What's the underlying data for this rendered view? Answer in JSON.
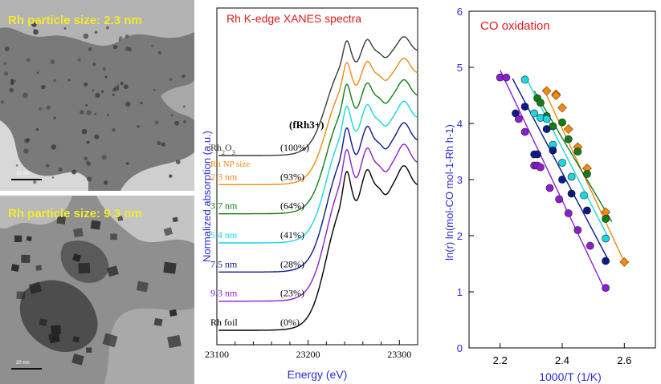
{
  "tem": {
    "top_label": "Rh particle size: 2.3 nm",
    "bottom_label": "Rh particle size: 9.3 nm",
    "top_scale": "10 nm",
    "bottom_scale": "20 nm"
  },
  "chart_data": [
    {
      "type": "line",
      "title": "Rh K-edge XANES spectra",
      "xlabel": "Energy (eV)",
      "ylabel": "Normalized absorption (a.u.)",
      "xlim": [
        23100,
        23320
      ],
      "xticks": [
        23100,
        23200,
        23300
      ],
      "fraction_header": "(fRh3+)",
      "size_header": "Rh NP size",
      "series": [
        {
          "name": "Rh foil",
          "fraction": "(0%)",
          "color": "#000000"
        },
        {
          "name": "9.3 nm",
          "fraction": "(23%)",
          "color": "#8b1fcf"
        },
        {
          "name": "7.5 nm",
          "fraction": "(28%)",
          "color": "#0a1a8c"
        },
        {
          "name": "5.4 nm",
          "fraction": "(41%)",
          "color": "#18d8e0"
        },
        {
          "name": "3.7 nm",
          "fraction": "(64%)",
          "color": "#137d16"
        },
        {
          "name": "2.3 nm",
          "fraction": "(93%)",
          "color": "#f08a12"
        },
        {
          "name": "Rh2O3",
          "fraction": "(100%)",
          "color": "#3a3a3a"
        }
      ]
    },
    {
      "type": "scatter",
      "title": "CO oxidation",
      "xlabel": "1000/T (1/K)",
      "ylabel": "ln(r) ln(mol-CO mol-1-Rh h-1)",
      "xlim": [
        2.1,
        2.7
      ],
      "ylim": [
        0,
        6
      ],
      "xticks": [
        2.2,
        2.4,
        2.6
      ],
      "yticks": [
        0,
        1,
        2,
        3,
        4,
        5,
        6
      ],
      "series": [
        {
          "name": "2.3 nm",
          "color": "#f08a12",
          "marker": "diamond",
          "x": [
            2.35,
            2.38,
            2.38,
            2.4,
            2.42,
            2.45,
            2.48,
            2.54,
            2.6
          ],
          "y": [
            4.58,
            4.52,
            4.5,
            4.28,
            3.9,
            3.58,
            3.2,
            2.42,
            1.53
          ],
          "fit": [
            [
              2.34,
              4.62
            ],
            [
              2.6,
              1.53
            ]
          ]
        },
        {
          "name": "3.7 nm",
          "color": "#137d16",
          "marker": "circle",
          "x": [
            2.32,
            2.33,
            2.35,
            2.37,
            2.4,
            2.42,
            2.45,
            2.48,
            2.54
          ],
          "y": [
            4.45,
            4.37,
            4.13,
            3.95,
            4.02,
            3.72,
            3.5,
            3.1,
            2.3
          ],
          "fit": [
            [
              2.31,
              4.58
            ],
            [
              2.56,
              2.25
            ]
          ]
        },
        {
          "name": "5.4 nm",
          "color": "#18d8e0",
          "marker": "circle",
          "x": [
            2.28,
            2.31,
            2.33,
            2.35,
            2.37,
            2.4,
            2.43,
            2.47,
            2.54
          ],
          "y": [
            4.78,
            4.18,
            4.1,
            4.08,
            3.62,
            3.3,
            3.05,
            2.72,
            1.95
          ],
          "fit": [
            [
              2.28,
              4.85
            ],
            [
              2.55,
              1.95
            ]
          ]
        },
        {
          "name": "7.5 nm",
          "color": "#0a1a8c",
          "marker": "circle",
          "x": [
            2.25,
            2.28,
            2.31,
            2.32,
            2.35,
            2.37,
            2.4,
            2.43,
            2.48,
            2.54
          ],
          "y": [
            4.18,
            4.3,
            3.45,
            3.45,
            3.9,
            3.52,
            3.0,
            2.75,
            2.45,
            1.55
          ],
          "fit": [
            [
              2.24,
              4.8
            ],
            [
              2.55,
              1.55
            ]
          ]
        },
        {
          "name": "9.3 nm",
          "color": "#8b1fcf",
          "marker": "circle",
          "x": [
            2.2,
            2.22,
            2.26,
            2.28,
            2.31,
            2.32,
            2.33,
            2.36,
            2.39,
            2.42,
            2.45,
            2.49,
            2.54
          ],
          "y": [
            4.82,
            4.82,
            4.08,
            3.85,
            3.25,
            3.25,
            3.22,
            2.85,
            2.65,
            2.4,
            2.1,
            1.82,
            1.07
          ],
          "fit": [
            [
              2.2,
              4.95
            ],
            [
              2.54,
              1.0
            ]
          ]
        }
      ]
    }
  ]
}
